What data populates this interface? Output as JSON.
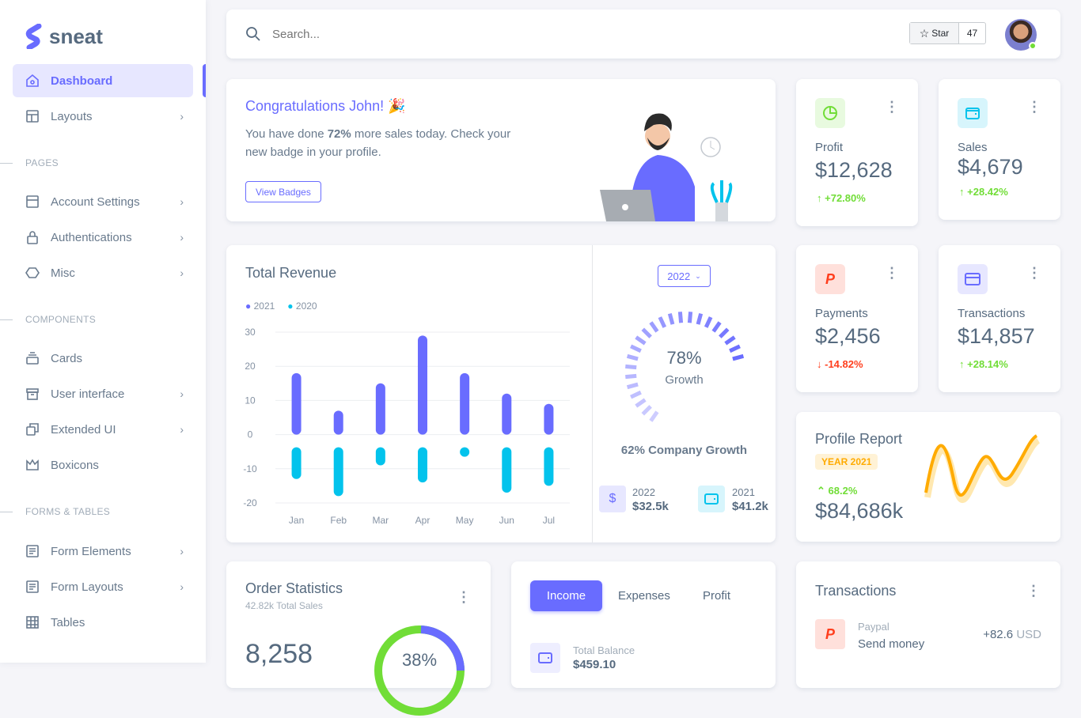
{
  "brand": "sneat",
  "sidebar": {
    "items": [
      {
        "label": "Dashboard"
      },
      {
        "label": "Layouts"
      }
    ],
    "sections": [
      "PAGES",
      "COMPONENTS",
      "FORMS & TABLES"
    ],
    "pages": [
      {
        "label": "Account Settings"
      },
      {
        "label": "Authentications"
      },
      {
        "label": "Misc"
      }
    ],
    "components": [
      {
        "label": "Cards"
      },
      {
        "label": "User interface"
      },
      {
        "label": "Extended UI"
      },
      {
        "label": "Boxicons"
      }
    ],
    "forms": [
      {
        "label": "Form Elements"
      },
      {
        "label": "Form Layouts"
      },
      {
        "label": "Tables"
      }
    ]
  },
  "navbar": {
    "search_placeholder": "Search...",
    "star_label": "Star",
    "star_count": "47"
  },
  "welcome": {
    "title": "Congratulations John! 🎉",
    "text_pre": "You have done ",
    "text_bold": "72%",
    "text_post": " more sales today. Check your new badge in your profile.",
    "button": "View Badges"
  },
  "stats": [
    {
      "label": "Profit",
      "value": "$12,628",
      "change": "+72.80%",
      "dir": "up"
    },
    {
      "label": "Sales",
      "value": "$4,679",
      "change": "+28.42%",
      "dir": "up"
    },
    {
      "label": "Payments",
      "value": "$2,456",
      "change": "-14.82%",
      "dir": "down"
    },
    {
      "label": "Transactions",
      "value": "$14,857",
      "change": "+28.14%",
      "dir": "up"
    }
  ],
  "revenue": {
    "title": "Total Revenue",
    "year_select": "2022",
    "growth_pct": "78%",
    "growth_label": "Growth",
    "company_growth": "62% Company Growth",
    "summary": [
      {
        "year": "2022",
        "value": "$32.5k"
      },
      {
        "year": "2021",
        "value": "$41.2k"
      }
    ]
  },
  "chart_data": {
    "type": "bar",
    "title": "Total Revenue",
    "categories": [
      "Jan",
      "Feb",
      "Mar",
      "Apr",
      "May",
      "Jun",
      "Jul"
    ],
    "series": [
      {
        "name": "2021",
        "color": "#696cff",
        "values": [
          18,
          7,
          15,
          29,
          18,
          12,
          9
        ]
      },
      {
        "name": "2020",
        "color": "#03c3ec",
        "values": [
          -13,
          -18,
          -9,
          -14,
          -5,
          -17,
          -15
        ]
      }
    ],
    "yticks": [
      "30",
      "20",
      "10",
      "0",
      "-10",
      "-20"
    ],
    "ylim": [
      -20,
      30
    ],
    "legend": "top-left",
    "grid": true
  },
  "gauge": {
    "value": 78
  },
  "profile_report": {
    "title": "Profile Report",
    "badge": "YEAR 2021",
    "change": "68.2%",
    "value": "$84,686k"
  },
  "order_stats": {
    "title": "Order Statistics",
    "subtitle": "42.82k Total Sales",
    "value": "8,258",
    "donut_pct": "38%"
  },
  "income": {
    "tabs": [
      "Income",
      "Expenses",
      "Profit"
    ],
    "balance_label": "Total Balance",
    "balance_value": "$459.10"
  },
  "transactions": {
    "title": "Transactions",
    "items": [
      {
        "type": "Paypal",
        "desc": "Send money",
        "amount": "+82.6",
        "currency": "USD"
      }
    ]
  },
  "colors": {
    "primary": "#696cff",
    "success": "#71dd37",
    "danger": "#ff3e1d",
    "info": "#03c3ec",
    "warning": "#ffab00"
  }
}
